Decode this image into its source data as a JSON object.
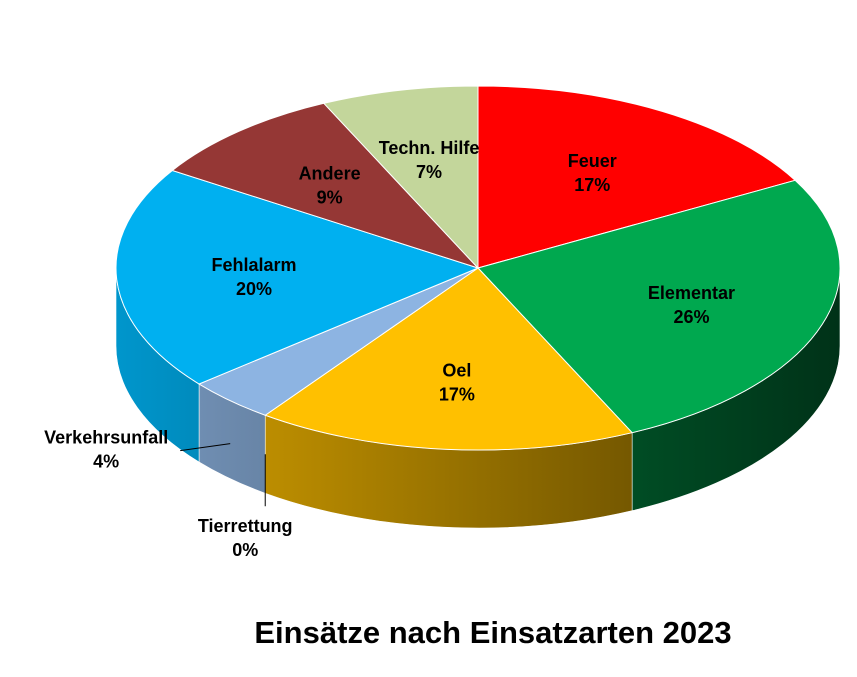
{
  "chart_data": {
    "type": "pie",
    "title": "Einsätze nach Einsatzarten 2023",
    "slices": [
      {
        "name": "Feuer",
        "value": 17,
        "pct_label": "17%",
        "color": "#ff0000"
      },
      {
        "name": "Elementar",
        "value": 26,
        "pct_label": "26%",
        "color": "#00a84f"
      },
      {
        "name": "Oel",
        "value": 17,
        "pct_label": "17%",
        "color": "#ffc000"
      },
      {
        "name": "Tierrettung",
        "value": 0,
        "pct_label": "0%",
        "color": "#808080"
      },
      {
        "name": "Verkehrsunfall",
        "value": 4,
        "pct_label": "4%",
        "color": "#8db4e2"
      },
      {
        "name": "Fehlalarm",
        "value": 20,
        "pct_label": "20%",
        "color": "#00b0f0"
      },
      {
        "name": "Andere",
        "value": 9,
        "pct_label": "9%",
        "color": "#953735"
      },
      {
        "name": "Techn. Hilfe",
        "value": 7,
        "pct_label": "7%",
        "color": "#c3d69b"
      }
    ],
    "legend": "none",
    "style": "3d-exploded-perspective"
  }
}
